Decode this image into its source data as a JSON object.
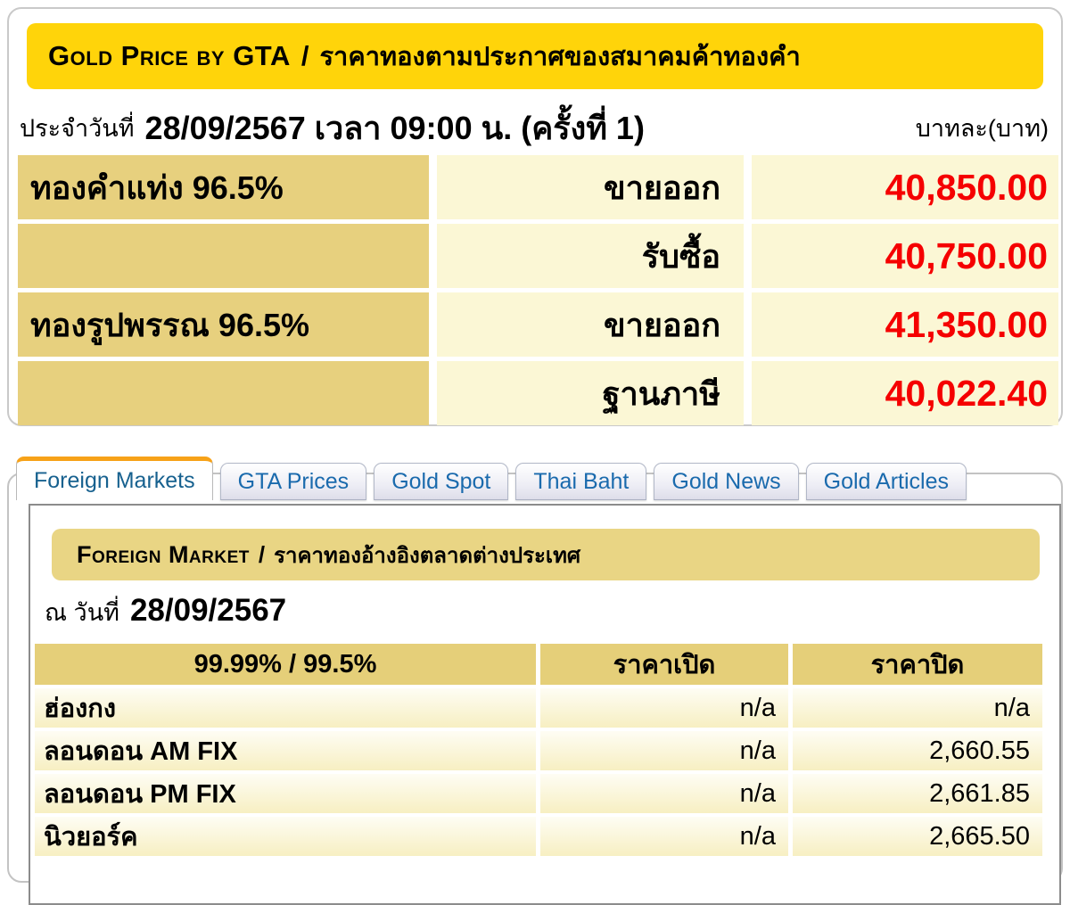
{
  "gold_price_box": {
    "header": {
      "title_en": "Gold Price by GTA",
      "separator": "/",
      "title_th": "ราคาทองตามประกาศของสมาคมค้าทองคำ"
    },
    "date_label": "ประจำวันที่",
    "date_value": "28/09/2567 เวลา 09:00 น. (ครั้งที่ 1)",
    "unit_label": "บาทละ(บาท)",
    "rows": [
      {
        "name": "ทองคำแท่ง 96.5%",
        "type": "ขายออก",
        "price": "40,850.00"
      },
      {
        "name": "",
        "type": "รับซื้อ",
        "price": "40,750.00"
      },
      {
        "name": "ทองรูปพรรณ 96.5%",
        "type": "ขายออก",
        "price": "41,350.00"
      },
      {
        "name": "",
        "type": "ฐานภาษี",
        "price": "40,022.40"
      }
    ]
  },
  "tabs": [
    {
      "label": "Foreign Markets",
      "active": true
    },
    {
      "label": "GTA Prices",
      "active": false
    },
    {
      "label": "Gold Spot",
      "active": false
    },
    {
      "label": "Thai Baht",
      "active": false
    },
    {
      "label": "Gold News",
      "active": false
    },
    {
      "label": "Gold Articles",
      "active": false
    }
  ],
  "foreign_market_box": {
    "header": {
      "title_en": "Foreign Market",
      "separator": "/",
      "title_th": "ราคาทองอ้างอิงตลาดต่างประเทศ"
    },
    "date_label": "ณ วันที่",
    "date_value": "28/09/2567",
    "table": {
      "columns": [
        "99.99% / 99.5%",
        "ราคาเปิด",
        "ราคาปิด"
      ],
      "rows": [
        {
          "market": "ฮ่องกง",
          "open": "n/a",
          "close": "n/a"
        },
        {
          "market": "ลอนดอน AM FIX",
          "open": "n/a",
          "close": "2,660.55"
        },
        {
          "market": "ลอนดอน PM FIX",
          "open": "n/a",
          "close": "2,661.85"
        },
        {
          "market": "นิวยอร์ค",
          "open": "n/a",
          "close": "2,665.50"
        }
      ]
    }
  },
  "colors": {
    "header_gold": "#ffd40a",
    "khaki_cell": "#e7d07e",
    "pale_yellow_cell": "#fbf7d5",
    "price_red": "#f50000",
    "tab_blue": "#1a6aad",
    "active_tab_top": "#f7a218",
    "fm_header_khaki": "#e9d584"
  }
}
